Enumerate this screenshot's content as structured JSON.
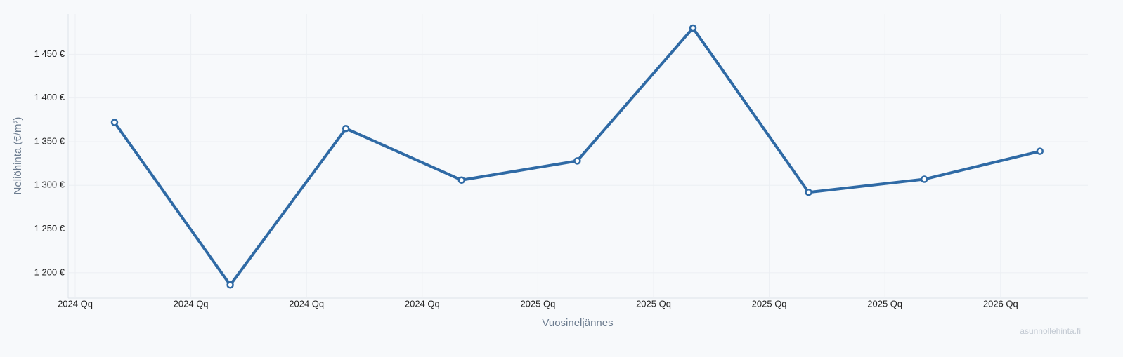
{
  "chart_data": {
    "type": "line",
    "categories": [
      "2024 Qq",
      "2024 Qq",
      "2024 Qq",
      "2024 Qq",
      "2025 Qq",
      "2025 Qq",
      "2025 Qq",
      "2025 Qq",
      "2026 Qq"
    ],
    "series": [
      {
        "name": "Neliöhinta",
        "color": "#2f6aa5",
        "values": [
          1372,
          1186,
          1365,
          1306,
          1328,
          1480,
          1292,
          1307,
          1339
        ]
      }
    ],
    "ylim": [
      1171,
      1496
    ],
    "yticks": [
      {
        "value": 1200,
        "label": "1 200 €"
      },
      {
        "value": 1250,
        "label": "1 250 €"
      },
      {
        "value": 1300,
        "label": "1 300 €"
      },
      {
        "value": 1350,
        "label": "1 350 €"
      },
      {
        "value": 1400,
        "label": "1 400 €"
      },
      {
        "value": 1450,
        "label": "1 450 €"
      }
    ],
    "ylabel": "Neliöhinta (€/m²)",
    "xlabel": "Vuosineljännes",
    "watermark": "asunnollehinta.fi",
    "grid": true
  }
}
